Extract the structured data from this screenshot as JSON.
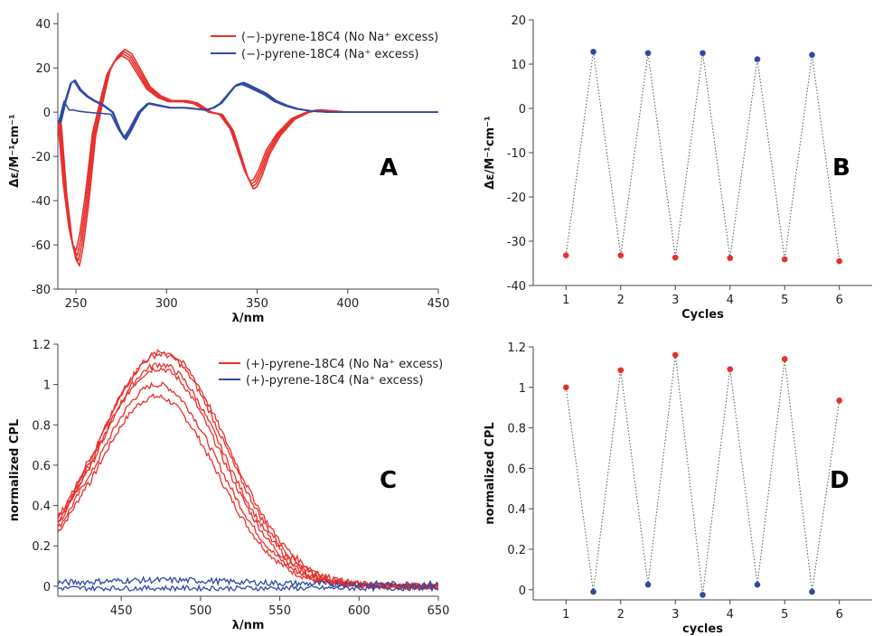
{
  "colors": {
    "red": "#e8302c",
    "blue": "#2f4aa3",
    "axis": "#444444",
    "dotted": "#555555"
  },
  "chart_data": [
    {
      "panel": "A",
      "type": "line",
      "xlabel": "λ/nm",
      "ylabel": "Δε/M⁻¹cm⁻¹",
      "xlim": [
        240,
        450
      ],
      "ylim": [
        -80,
        45
      ],
      "xticks": [
        250,
        300,
        350,
        400,
        450
      ],
      "yticks": [
        -80,
        -60,
        -40,
        -20,
        0,
        20,
        40
      ],
      "legend": "top-right",
      "series": [
        {
          "name": "(−)-pyrene-18C4 (No Na⁺ excess)",
          "color": "#e8302c",
          "replicates": 4,
          "x": [
            241,
            244,
            247,
            249,
            251,
            253,
            256,
            260,
            265,
            268,
            272,
            276,
            280,
            285,
            290,
            296,
            302,
            310,
            316,
            320,
            324,
            330,
            336,
            340,
            344,
            347,
            349,
            352,
            356,
            362,
            370,
            378,
            384,
            392,
            400,
            420,
            450
          ],
          "y": [
            -5,
            -35,
            -55,
            -63,
            -66,
            -58,
            -40,
            -10,
            8,
            18,
            24,
            27,
            25,
            18,
            11,
            7,
            5,
            5,
            4,
            2,
            0,
            -1,
            -8,
            -18,
            -28,
            -33,
            -32,
            -27,
            -18,
            -10,
            -3,
            0,
            1,
            0.5,
            0,
            0,
            0
          ]
        },
        {
          "name": "(−)-pyrene-18C4 (Na⁺ excess)",
          "color": "#2f4aa3",
          "replicates": 3,
          "x": [
            241,
            244,
            247,
            249,
            252,
            256,
            260,
            265,
            270,
            274,
            277,
            280,
            285,
            290,
            296,
            302,
            310,
            316,
            322,
            326,
            330,
            334,
            338,
            342,
            345,
            350,
            355,
            360,
            366,
            372,
            380,
            390,
            400,
            420,
            450
          ],
          "y": [
            -5,
            5,
            13,
            14,
            10,
            7,
            5,
            3,
            0,
            -8,
            -12,
            -8,
            0,
            4,
            3,
            2,
            2,
            1.5,
            1,
            2,
            4,
            8,
            12,
            13,
            12,
            10,
            8,
            5,
            3,
            1.5,
            0.5,
            0,
            0,
            0,
            0
          ]
        }
      ]
    },
    {
      "panel": "B",
      "type": "scatter",
      "xlabel": "Cycles",
      "ylabel": "Δε/M⁻¹cm⁻¹",
      "xlim": [
        0.4,
        6.6
      ],
      "ylim": [
        -40,
        20
      ],
      "xticks": [
        1,
        2,
        3,
        4,
        5,
        6
      ],
      "yticks": [
        -40,
        -30,
        -20,
        -10,
        0,
        10,
        20
      ],
      "points": [
        {
          "x": 1,
          "y": -33.2,
          "c": "red"
        },
        {
          "x": 1.5,
          "y": 12.8,
          "c": "blue"
        },
        {
          "x": 2,
          "y": -33.2,
          "c": "red"
        },
        {
          "x": 2.5,
          "y": 12.5,
          "c": "blue"
        },
        {
          "x": 3,
          "y": -33.7,
          "c": "red"
        },
        {
          "x": 3.5,
          "y": 12.5,
          "c": "blue"
        },
        {
          "x": 4,
          "y": -33.8,
          "c": "red"
        },
        {
          "x": 4.5,
          "y": 11.1,
          "c": "blue"
        },
        {
          "x": 5,
          "y": -34.1,
          "c": "red"
        },
        {
          "x": 5.5,
          "y": 12.1,
          "c": "blue"
        },
        {
          "x": 6,
          "y": -34.5,
          "c": "red"
        }
      ]
    },
    {
      "panel": "C",
      "type": "line",
      "xlabel": "λ/nm",
      "ylabel": "normalized CPL",
      "xlim": [
        410,
        650
      ],
      "ylim": [
        -0.05,
        1.2
      ],
      "xticks": [
        450,
        500,
        550,
        600,
        650
      ],
      "yticks": [
        0,
        0.2,
        0.4,
        0.6,
        0.8,
        1,
        1.2
      ],
      "legend": "top-right",
      "series": [
        {
          "name": "(+)-pyrene-18C4 (No Na⁺ excess)",
          "color": "#e8302c",
          "amplitudes": [
            0.94,
            1.0,
            1.08,
            1.1,
            1.15,
            1.16
          ]
        },
        {
          "name": "(+)-pyrene-18C4 (Na⁺ excess)",
          "color": "#2f4aa3",
          "amplitudes": [
            0.02
          ]
        }
      ]
    },
    {
      "panel": "D",
      "type": "scatter",
      "xlabel": "cycles",
      "ylabel": "normalized CPL",
      "xlim": [
        0.4,
        6.6
      ],
      "ylim": [
        -0.05,
        1.2
      ],
      "xticks": [
        1,
        2,
        3,
        4,
        5,
        6
      ],
      "yticks": [
        0,
        0.2,
        0.4,
        0.6,
        0.8,
        1,
        1.2
      ],
      "points": [
        {
          "x": 1,
          "y": 1.0,
          "c": "red"
        },
        {
          "x": 1.5,
          "y": -0.01,
          "c": "blue"
        },
        {
          "x": 2,
          "y": 1.085,
          "c": "red"
        },
        {
          "x": 2.5,
          "y": 0.025,
          "c": "blue"
        },
        {
          "x": 3,
          "y": 1.16,
          "c": "red"
        },
        {
          "x": 3.5,
          "y": -0.025,
          "c": "blue"
        },
        {
          "x": 4,
          "y": 1.09,
          "c": "red"
        },
        {
          "x": 4.5,
          "y": 0.025,
          "c": "blue"
        },
        {
          "x": 5,
          "y": 1.14,
          "c": "red"
        },
        {
          "x": 5.5,
          "y": -0.01,
          "c": "blue"
        },
        {
          "x": 6,
          "y": 0.935,
          "c": "red"
        }
      ]
    }
  ]
}
